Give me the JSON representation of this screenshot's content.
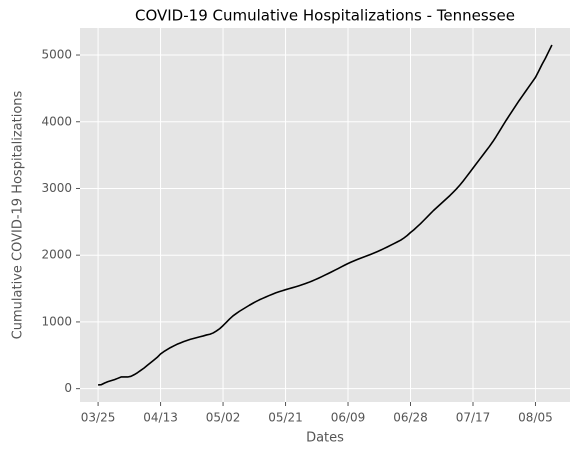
{
  "chart_data": {
    "type": "line",
    "title": "COVID-19 Cumulative Hospitalizations - Tennessee",
    "x_label": "Dates",
    "y_label": "Cumulative COVID-19 Hospitalizations",
    "categories": [
      "03/25",
      null,
      null,
      null,
      null,
      null,
      null,
      null,
      null,
      null,
      null,
      null,
      null,
      null,
      null,
      null,
      null,
      null,
      null,
      "04/13",
      null,
      null,
      null,
      null,
      null,
      null,
      null,
      null,
      null,
      null,
      null,
      null,
      null,
      null,
      null,
      null,
      null,
      null,
      "05/02",
      null,
      null,
      null,
      null,
      null,
      null,
      null,
      null,
      null,
      null,
      null,
      null,
      null,
      null,
      null,
      null,
      null,
      null,
      "05/21",
      null,
      null,
      null,
      null,
      null,
      null,
      null,
      null,
      null,
      null,
      null,
      null,
      null,
      null,
      null,
      null,
      null,
      null,
      "06/09",
      null,
      null,
      null,
      null,
      null,
      null,
      null,
      null,
      null,
      null,
      null,
      null,
      null,
      null,
      null,
      null,
      null,
      null,
      "06/28",
      null,
      null,
      null,
      null,
      null,
      null,
      null,
      null,
      null,
      null,
      null,
      null,
      null,
      null,
      null,
      null,
      null,
      null,
      "07/17",
      null,
      null,
      null,
      null,
      null,
      null,
      null,
      null,
      null,
      null,
      null,
      null,
      null,
      null,
      null,
      null,
      null,
      null,
      "08/05",
      null,
      null,
      null,
      null,
      null
    ],
    "values": [
      55,
      60,
      85,
      105,
      120,
      135,
      155,
      175,
      175,
      175,
      185,
      210,
      240,
      275,
      310,
      350,
      390,
      430,
      470,
      520,
      555,
      585,
      615,
      640,
      665,
      685,
      705,
      722,
      738,
      752,
      765,
      778,
      790,
      805,
      815,
      835,
      865,
      900,
      945,
      995,
      1045,
      1090,
      1125,
      1160,
      1190,
      1220,
      1250,
      1278,
      1305,
      1330,
      1352,
      1374,
      1395,
      1415,
      1435,
      1452,
      1468,
      1483,
      1497,
      1511,
      1526,
      1541,
      1557,
      1574,
      1592,
      1612,
      1633,
      1655,
      1678,
      1702,
      1726,
      1750,
      1775,
      1800,
      1826,
      1851,
      1876,
      1898,
      1919,
      1939,
      1958,
      1977,
      1996,
      2015,
      2035,
      2056,
      2078,
      2101,
      2125,
      2150,
      2175,
      2200,
      2225,
      2258,
      2295,
      2340,
      2380,
      2425,
      2470,
      2520,
      2570,
      2620,
      2670,
      2715,
      2760,
      2805,
      2850,
      2895,
      2945,
      2995,
      3050,
      3110,
      3175,
      3240,
      3305,
      3370,
      3435,
      3500,
      3565,
      3630,
      3700,
      3775,
      3855,
      3935,
      4015,
      4090,
      4165,
      4240,
      4315,
      4385,
      4455,
      4525,
      4595,
      4665,
      4760,
      4860,
      4950,
      5050,
      5150
    ],
    "color": "#000000",
    "ylim": [
      -200,
      5405
    ],
    "yticks": [
      0,
      1000,
      2000,
      3000,
      4000,
      5000
    ],
    "grid": true
  }
}
